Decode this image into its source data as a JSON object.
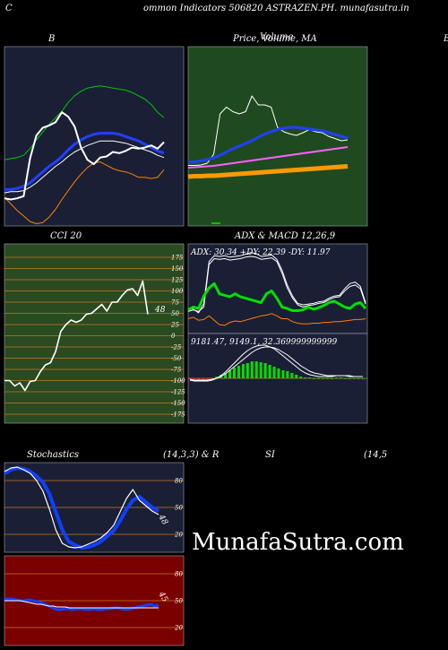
{
  "header": {
    "left_letter": "C",
    "title": "ommon  Indicators 506820  ASTRAZEN.PH. munafasutra.in",
    "right_letter": "B"
  },
  "watermark": "MunafaSutra.com",
  "colors": {
    "navy_bg": "#1a1f36",
    "green_bg": "#1f4a1f",
    "cci_bg": "#2a4a22",
    "red_bg": "#7a0000",
    "grid": "#c8781e"
  },
  "panels": {
    "bollinger": {
      "title": "B"
    },
    "price": {
      "title": "Price,  Volume,  MA",
      "overlay_title": "Volume"
    },
    "cci": {
      "title": "CCI 20",
      "ticks": [
        "175",
        "150",
        "125",
        "100",
        "75",
        "50",
        "25",
        "0",
        "-25",
        "-50",
        "-75",
        "-100",
        "-125",
        "-150",
        "-175"
      ],
      "value_label": "48"
    },
    "adx_macd": {
      "title": "ADX  & MACD 12,26,9",
      "adx_text": "ADX: 30.34  +DY: 22.39 -DY: 11.97",
      "macd_text": "9181.47,  9149.1,  32.369999999999"
    },
    "stochastics": {
      "title_left": "Stochastics",
      "title_mid": "(14,3,3) & R",
      "ticks": [
        "80",
        "50",
        "20"
      ],
      "value_label": "48"
    },
    "rsi": {
      "title_left": "SI",
      "title_right": "(14,5",
      "ticks": [
        "80",
        "50",
        "20"
      ],
      "value_label": "45"
    }
  },
  "chart_data": [
    {
      "type": "line",
      "panel": "bollinger",
      "series": [
        {
          "color": "#00c800",
          "values": [
            60,
            61,
            62,
            64,
            70,
            78,
            85,
            92,
            98,
            104,
            112,
            118,
            122,
            125,
            126,
            127,
            126,
            125,
            124,
            123,
            121,
            118,
            115,
            110,
            103,
            98
          ]
        },
        {
          "color": "#2040ff",
          "values": [
            33,
            33,
            34,
            36,
            39,
            44,
            49,
            54,
            58,
            63,
            69,
            74,
            78,
            81,
            83,
            84,
            84,
            84,
            83,
            81,
            79,
            77,
            74,
            71,
            68,
            66
          ]
        },
        {
          "color": "#ffffff",
          "values": [
            30,
            31,
            31,
            32,
            35,
            39,
            44,
            49,
            54,
            58,
            63,
            67,
            70,
            73,
            75,
            77,
            77,
            77,
            76,
            75,
            73,
            71,
            69,
            67,
            64,
            62
          ]
        },
        {
          "color": "#ff8000",
          "values": [
            26,
            20,
            14,
            9,
            4,
            2,
            3,
            8,
            15,
            24,
            32,
            40,
            47,
            53,
            57,
            58,
            55,
            52,
            50,
            49,
            47,
            44,
            44,
            43,
            44,
            51
          ]
        },
        {
          "color": "#ffffff",
          "values": [
            25,
            24,
            25,
            27,
            61,
            82,
            89,
            91,
            94,
            103,
            99,
            90,
            71,
            60,
            56,
            62,
            63,
            67,
            66,
            68,
            71,
            70,
            71,
            73,
            70,
            76
          ]
        }
      ]
    },
    {
      "type": "line",
      "panel": "price",
      "series": [
        {
          "color": "#ffffff",
          "values": [
            45,
            45,
            46,
            50,
            70,
            160,
            175,
            165,
            160,
            165,
            200,
            180,
            180,
            175,
            130,
            120,
            115,
            112,
            118,
            125,
            120,
            118,
            110,
            105,
            100,
            102
          ]
        },
        {
          "color": "#2040ff",
          "values": [
            52,
            53,
            55,
            58,
            62,
            68,
            75,
            82,
            88,
            94,
            100,
            108,
            115,
            120,
            125,
            128,
            130,
            130,
            128,
            126,
            124,
            122,
            118,
            114,
            110,
            106
          ]
        },
        {
          "color": "#ff60ff",
          "values": [
            40,
            41,
            42,
            43,
            44,
            46,
            48,
            50,
            52,
            54,
            56,
            58,
            60,
            62,
            64,
            66,
            68,
            70,
            72,
            74,
            76,
            78,
            80,
            82,
            84,
            86
          ]
        },
        {
          "color": "#ff9900",
          "values": [
            20,
            21,
            21,
            22,
            22,
            23,
            24,
            25,
            26,
            27,
            28,
            29,
            30,
            31,
            32,
            33,
            34,
            35,
            36,
            37,
            38,
            39,
            40,
            41,
            42,
            43
          ]
        }
      ]
    },
    {
      "type": "line",
      "panel": "cci",
      "ylim": [
        -175,
        175
      ],
      "series": [
        {
          "color": "#ffffff",
          "values": [
            -100,
            -100,
            -112,
            -105,
            -122,
            -102,
            -100,
            -80,
            -65,
            -60,
            -35,
            10,
            25,
            35,
            30,
            35,
            48,
            50,
            60,
            70,
            55,
            75,
            75,
            90,
            102,
            105,
            90,
            122,
            48
          ]
        }
      ]
    },
    {
      "type": "line",
      "panel": "adx",
      "series": [
        {
          "color": "#ffffff",
          "values": [
            28,
            27,
            22,
            35,
            92,
            100,
            99,
            100,
            98,
            99,
            100,
            102,
            104,
            103,
            99,
            100,
            101,
            95,
            80,
            60,
            45,
            35,
            33,
            34,
            35,
            37,
            38,
            42,
            45,
            46,
            55,
            62,
            64,
            58,
            36
          ]
        },
        {
          "color": "#ffffff",
          "values": [
            24,
            26,
            24,
            30,
            88,
            96,
            95,
            96,
            94,
            95,
            96,
            98,
            99,
            98,
            95,
            96,
            97,
            92,
            76,
            56,
            42,
            33,
            30,
            32,
            33,
            35,
            36,
            40,
            43,
            44,
            52,
            58,
            60,
            55,
            34
          ]
        },
        {
          "color": "#00e000",
          "values": [
            26,
            30,
            28,
            45,
            56,
            62,
            48,
            46,
            44,
            48,
            44,
            42,
            40,
            38,
            36,
            48,
            52,
            42,
            30,
            28,
            25,
            25,
            26,
            30,
            27,
            29,
            32,
            36,
            38,
            34,
            30,
            28,
            34,
            36,
            28
          ]
        },
        {
          "color": "#ff8000",
          "values": [
            14,
            16,
            12,
            13,
            18,
            12,
            6,
            5,
            9,
            11,
            10,
            12,
            14,
            16,
            18,
            19,
            21,
            18,
            14,
            14,
            10,
            8,
            7,
            7,
            8,
            8,
            9,
            9,
            10,
            10,
            11,
            12,
            13,
            13,
            14
          ]
        }
      ]
    },
    {
      "type": "bar",
      "panel": "macd",
      "values": [
        -1,
        -1,
        -2,
        -2,
        -2,
        -2,
        2,
        4,
        6,
        9,
        12,
        14,
        16,
        17,
        19,
        19,
        18,
        17,
        15,
        13,
        11,
        9,
        8,
        6,
        4,
        2,
        1,
        1,
        0,
        0,
        0,
        0,
        0,
        1,
        1,
        0,
        0,
        0,
        0,
        0
      ],
      "series": [
        {
          "color": "#ffffff",
          "values": [
            -2,
            -3,
            -3,
            -3,
            -3,
            -2,
            0,
            3,
            7,
            12,
            17,
            22,
            27,
            31,
            34,
            36,
            37,
            37,
            35,
            33,
            29,
            25,
            21,
            17,
            13,
            9,
            6,
            4,
            3,
            2,
            2,
            2,
            2,
            3,
            3,
            3,
            2,
            2,
            2,
            2
          ]
        },
        {
          "color": "#ffffff",
          "values": [
            -1,
            -2,
            -2,
            -2,
            -2,
            -1,
            0,
            2,
            5,
            9,
            13,
            17,
            21,
            25,
            29,
            32,
            34,
            35,
            35,
            34,
            32,
            29,
            26,
            22,
            18,
            14,
            11,
            8,
            6,
            5,
            4,
            3,
            3,
            3,
            3,
            3,
            3,
            2,
            2,
            2
          ]
        }
      ]
    },
    {
      "type": "line",
      "panel": "stochastics",
      "ylim": [
        0,
        100
      ],
      "series": [
        {
          "color": "#1040ff",
          "values": [
            88,
            92,
            94,
            93,
            90,
            85,
            78,
            65,
            45,
            25,
            12,
            8,
            5,
            6,
            8,
            12,
            18,
            24,
            35,
            48,
            58,
            62,
            56,
            50,
            46
          ]
        },
        {
          "color": "#ffffff",
          "values": [
            90,
            94,
            95,
            92,
            88,
            80,
            68,
            48,
            25,
            10,
            6,
            5,
            6,
            9,
            12,
            16,
            22,
            30,
            45,
            60,
            70,
            58,
            52,
            46,
            42
          ]
        }
      ]
    },
    {
      "type": "line",
      "panel": "rsi",
      "ylim": [
        0,
        100
      ],
      "series": [
        {
          "color": "#1040ff",
          "values": [
            52,
            52,
            52,
            51,
            50,
            50,
            51,
            50,
            49,
            48,
            46,
            44,
            42,
            40,
            40,
            41,
            41,
            40,
            41,
            41,
            40,
            40,
            41,
            40,
            40,
            41,
            41,
            42,
            42,
            41,
            40,
            41,
            42,
            43,
            44,
            45,
            46,
            44,
            45
          ]
        },
        {
          "color": "#ffffff",
          "values": [
            50,
            50,
            50,
            50,
            50,
            49,
            48,
            47,
            46,
            46,
            45,
            44,
            44,
            43,
            43,
            43,
            42,
            42,
            42,
            42,
            42,
            42,
            42,
            42,
            42,
            42,
            42,
            42,
            42,
            42,
            42,
            42,
            42,
            42,
            42,
            42,
            42,
            42,
            42
          ]
        }
      ]
    }
  ]
}
